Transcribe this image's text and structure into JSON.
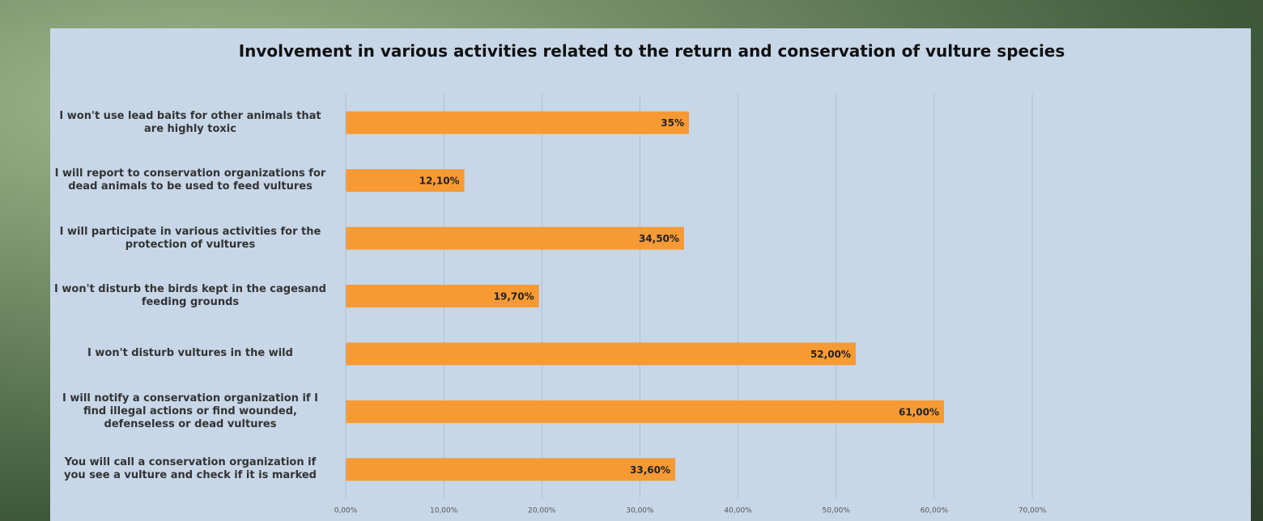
{
  "chart_data": {
    "type": "bar",
    "orientation": "horizontal",
    "title": "Involvement in various activities related to the return and conservation of vulture species",
    "categories": [
      "I won't use lead baits for other animals that are highly toxic",
      "I will report to conservation organizations for dead animals to be used to feed vultures",
      "I will participate in various activities for the protection of vultures",
      "I won't disturb the birds kept in the cagesand feeding grounds",
      "I won't disturb vultures in the wild",
      "I will notify a conservation organization if I find illegal actions or find wounded, defenseless or dead vultures",
      "You will call a conservation organization if you see a vulture and check if it is marked"
    ],
    "values": [
      35,
      12.1,
      34.5,
      19.7,
      52,
      61,
      33.6
    ],
    "value_labels": [
      "35%",
      "12,10%",
      "34,50%",
      "19,70%",
      "52,00%",
      "61,00%",
      "33,60%"
    ],
    "color": "#f79a34",
    "xlim": [
      0,
      70
    ],
    "xticks": [
      {
        "value": 0,
        "label": "0,00%"
      },
      {
        "value": 10,
        "label": "10,00%"
      },
      {
        "value": 20,
        "label": "20,00%"
      },
      {
        "value": 30,
        "label": "30,00%"
      },
      {
        "value": 40,
        "label": "40,00%"
      },
      {
        "value": 50,
        "label": "50,00%"
      },
      {
        "value": 60,
        "label": "60,00%"
      },
      {
        "value": 70,
        "label": "70,00%"
      }
    ],
    "grid": true
  }
}
